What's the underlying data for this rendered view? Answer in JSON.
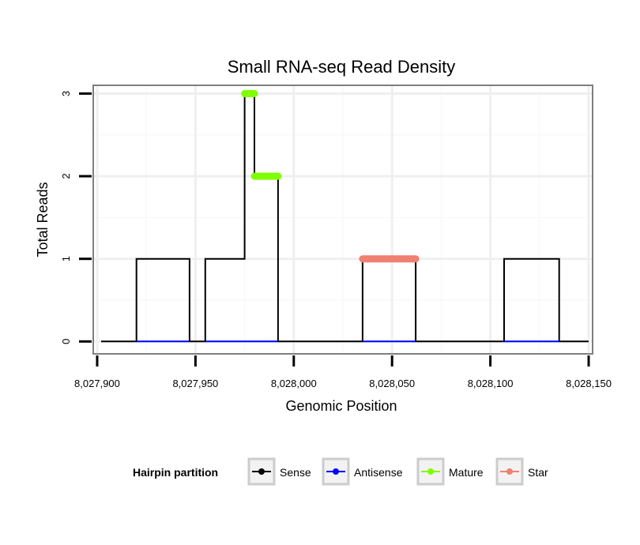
{
  "chart_data": {
    "type": "line",
    "title": "Small RNA-seq Read Density",
    "xlabel": "Genomic Position",
    "ylabel": "Total Reads",
    "xlim": [
      8027898,
      8028152
    ],
    "ylim": [
      -0.15,
      3.1
    ],
    "x_ticks": [
      8027900,
      8027950,
      8028000,
      8028050,
      8028100,
      8028150
    ],
    "x_tick_labels": [
      "8,027,900",
      "8,027,950",
      "8,028,000",
      "8,028,050",
      "8,028,100",
      "8,028,150"
    ],
    "y_ticks": [
      0,
      1,
      2,
      3
    ],
    "y_tick_labels": [
      "0",
      "1",
      "2",
      "3"
    ],
    "grid": true,
    "legend": {
      "title": "Hairpin partition",
      "position": "bottom",
      "entries": [
        "Sense",
        "Antisense",
        "Mature",
        "Star"
      ]
    },
    "series": [
      {
        "name": "Sense",
        "color": "#000000",
        "style": "step",
        "x": [
          8027902,
          8027920,
          8027920,
          8027947,
          8027947,
          8027955,
          8027955,
          8027975,
          8027975,
          8027980,
          8027980,
          8027992,
          8027992,
          8028035,
          8028035,
          8028062,
          8028062,
          8028107,
          8028107,
          8028135,
          8028135,
          8028150
        ],
        "values": [
          0,
          0,
          1,
          1,
          0,
          0,
          1,
          1,
          3,
          3,
          2,
          2,
          0,
          0,
          1,
          1,
          0,
          0,
          1,
          1,
          0,
          0
        ]
      },
      {
        "name": "Antisense",
        "color": "#0000ff",
        "style": "segments",
        "segments": [
          [
            8027920,
            8027947,
            0
          ],
          [
            8027955,
            8027992,
            0
          ],
          [
            8028035,
            8028062,
            0
          ],
          [
            8028107,
            8028135,
            0
          ]
        ]
      },
      {
        "name": "Mature",
        "color": "#7fff00",
        "style": "segments",
        "segments": [
          [
            8027975,
            8027980,
            3
          ],
          [
            8027980,
            8027992,
            2
          ]
        ]
      },
      {
        "name": "Star",
        "color": "#f08070",
        "style": "segments",
        "segments": [
          [
            8028035,
            8028062,
            1
          ]
        ]
      }
    ]
  }
}
